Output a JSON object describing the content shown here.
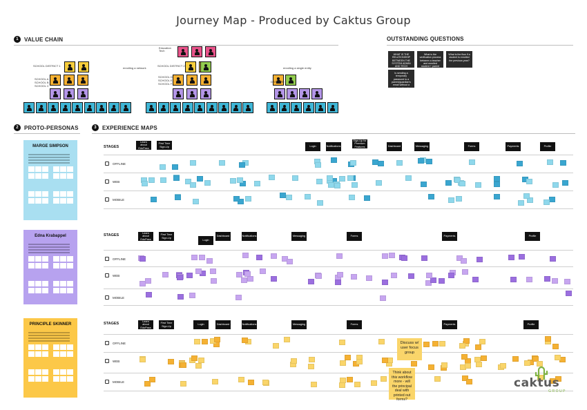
{
  "title": "Journey Map - Produced by Caktus Group",
  "sections": {
    "value_chain": {
      "number": "1",
      "label": "VALUE CHAIN"
    },
    "outstanding": {
      "label": "OUTSTANDING QUESTIONS"
    },
    "proto_personas": {
      "number": "2",
      "label": "PROTO-PERSONAS"
    },
    "experience_maps": {
      "number": "3",
      "label": "EXPERIENCE MAPS"
    }
  },
  "value_chain": {
    "labels": {
      "district1": "SCHOOL DISTRICT 1",
      "district2": "SCHOOL DISTRICT 2",
      "schools1": [
        "SCHOOL A",
        "SCHOOL B",
        "SCHOOL C"
      ],
      "schools2": [
        "SCHOOL D",
        "SCHOOL E",
        "SCHOOL F"
      ],
      "daycare": "DAY CARE",
      "edu_tech": "Education Tech",
      "network1": "enrolling a network",
      "network2": "enrolling a single entity"
    },
    "colors": {
      "pink": "#e8538a",
      "yellow": "#f7cd3c",
      "green": "#92cc4e",
      "orange": "#f5b133",
      "purple": "#b496e8",
      "teal": "#3fb6d6"
    }
  },
  "questions": [
    "WHAT IS THE RELATIONSHIP BETWEEN THE SYSTEM ADMIN AND TECH SUPPORT",
    "What is the verification process between a teacher and enrolled student + parent information?",
    "What is the flow if a student is enrolled the previous year?",
    "Is sending a temporary password to a parent/guardian's email without a window of expiry the best process in general?"
  ],
  "maps": [
    {
      "persona": "MARGE SIMPSON",
      "persona_color": "#a9dff1",
      "note_color": "#8fd8ec",
      "note_dark": "#3aa6d0",
      "stages_label": "STAGES",
      "stages": [
        "Learn about EdoPass",
        "First Time Sign-Up",
        "Login",
        "Notifications",
        "Sign-Up for Premium Features",
        "Dashboard",
        "Messaging",
        "Forms",
        "Payments",
        "Profile"
      ],
      "rows": [
        "OFFLINE",
        "WEB",
        "MOBILE"
      ]
    },
    {
      "persona": "Edna Krabappel",
      "persona_color": "#b7a2ef",
      "note_color": "#c7a6f0",
      "note_dark": "#9b6fdf",
      "stages_label": "STAGES",
      "stages": [
        "Learn about EdoPass",
        "First Time Sign-Up",
        "Login",
        "Dashboard",
        "Notifications",
        "Messaging",
        "Forms",
        "Payments",
        "Profile"
      ],
      "rows": [
        "OFFLINE",
        "WEB",
        "MOBILE"
      ]
    },
    {
      "persona": "PRINCIPLE SKINNER",
      "persona_color": "#fcc848",
      "note_color": "#fad56a",
      "note_dark": "#f5b133",
      "stages_label": "STAGES",
      "stages": [
        "Learn about EdoPass",
        "First Time Sign-Up",
        "Login",
        "Dashboard",
        "Notifications",
        "Messaging",
        "Forms",
        "Payments",
        "Profile"
      ],
      "rows": [
        "OFFLINE",
        "WEB",
        "MOBILE"
      ]
    }
  ],
  "callouts": {
    "discuss": "Discuss w/ user focus group",
    "think": "Think about this workflow more - will the principal deal with printed out forms?"
  },
  "logo": {
    "name": "caktus",
    "sub": "GROUP",
    "accent": "#7fb342"
  }
}
